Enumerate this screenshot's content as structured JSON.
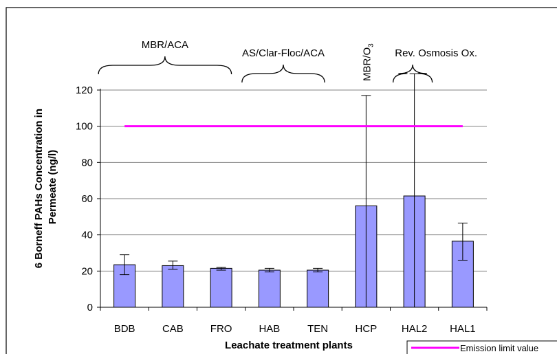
{
  "chart_data": {
    "type": "bar",
    "title": "",
    "xlabel": "Leachate treatment plants",
    "ylabel": "6 Borneff PAHs Concentration in Permeate (ng/l)",
    "ylabel_lines": [
      "6 Borneff PAHs Concentration in",
      "Permeate (ng/l)"
    ],
    "ylim": [
      0,
      120
    ],
    "yticks": [
      0,
      20,
      40,
      60,
      80,
      100,
      120
    ],
    "ytick_labels": [
      "0",
      "20",
      "40",
      "60",
      "80",
      "100",
      "120"
    ],
    "grid": true,
    "categories": [
      "BDB",
      "CAB",
      "FRO",
      "HAB",
      "TEN",
      "HCP",
      "HAL2",
      "HAL1"
    ],
    "values": [
      23.5,
      23,
      21.5,
      20.5,
      20.5,
      56,
      61.5,
      36.5
    ],
    "error_low": [
      18,
      21,
      20.5,
      19.5,
      19.5,
      0,
      0,
      26
    ],
    "error_high": [
      29,
      25.5,
      22,
      21.5,
      21.5,
      117,
      129,
      46.5
    ],
    "bar_color": "#9999ff",
    "reference_line": {
      "label": "Emission limit value",
      "value": 100,
      "color": "#ff00ff"
    },
    "legend_position": "bottom-right",
    "groups": [
      {
        "label": "MBR/ACA",
        "categories": [
          "BDB",
          "CAB",
          "FRO"
        ]
      },
      {
        "label": "AS/Clar-Floc/ACA",
        "categories": [
          "HAB",
          "TEN"
        ]
      },
      {
        "label": "MBR/O",
        "subscript": "3",
        "categories": [
          "HCP"
        ],
        "rotated": true
      },
      {
        "label": "Rev. Osmosis Ox.",
        "categories": [
          "HAL2"
        ]
      }
    ]
  }
}
